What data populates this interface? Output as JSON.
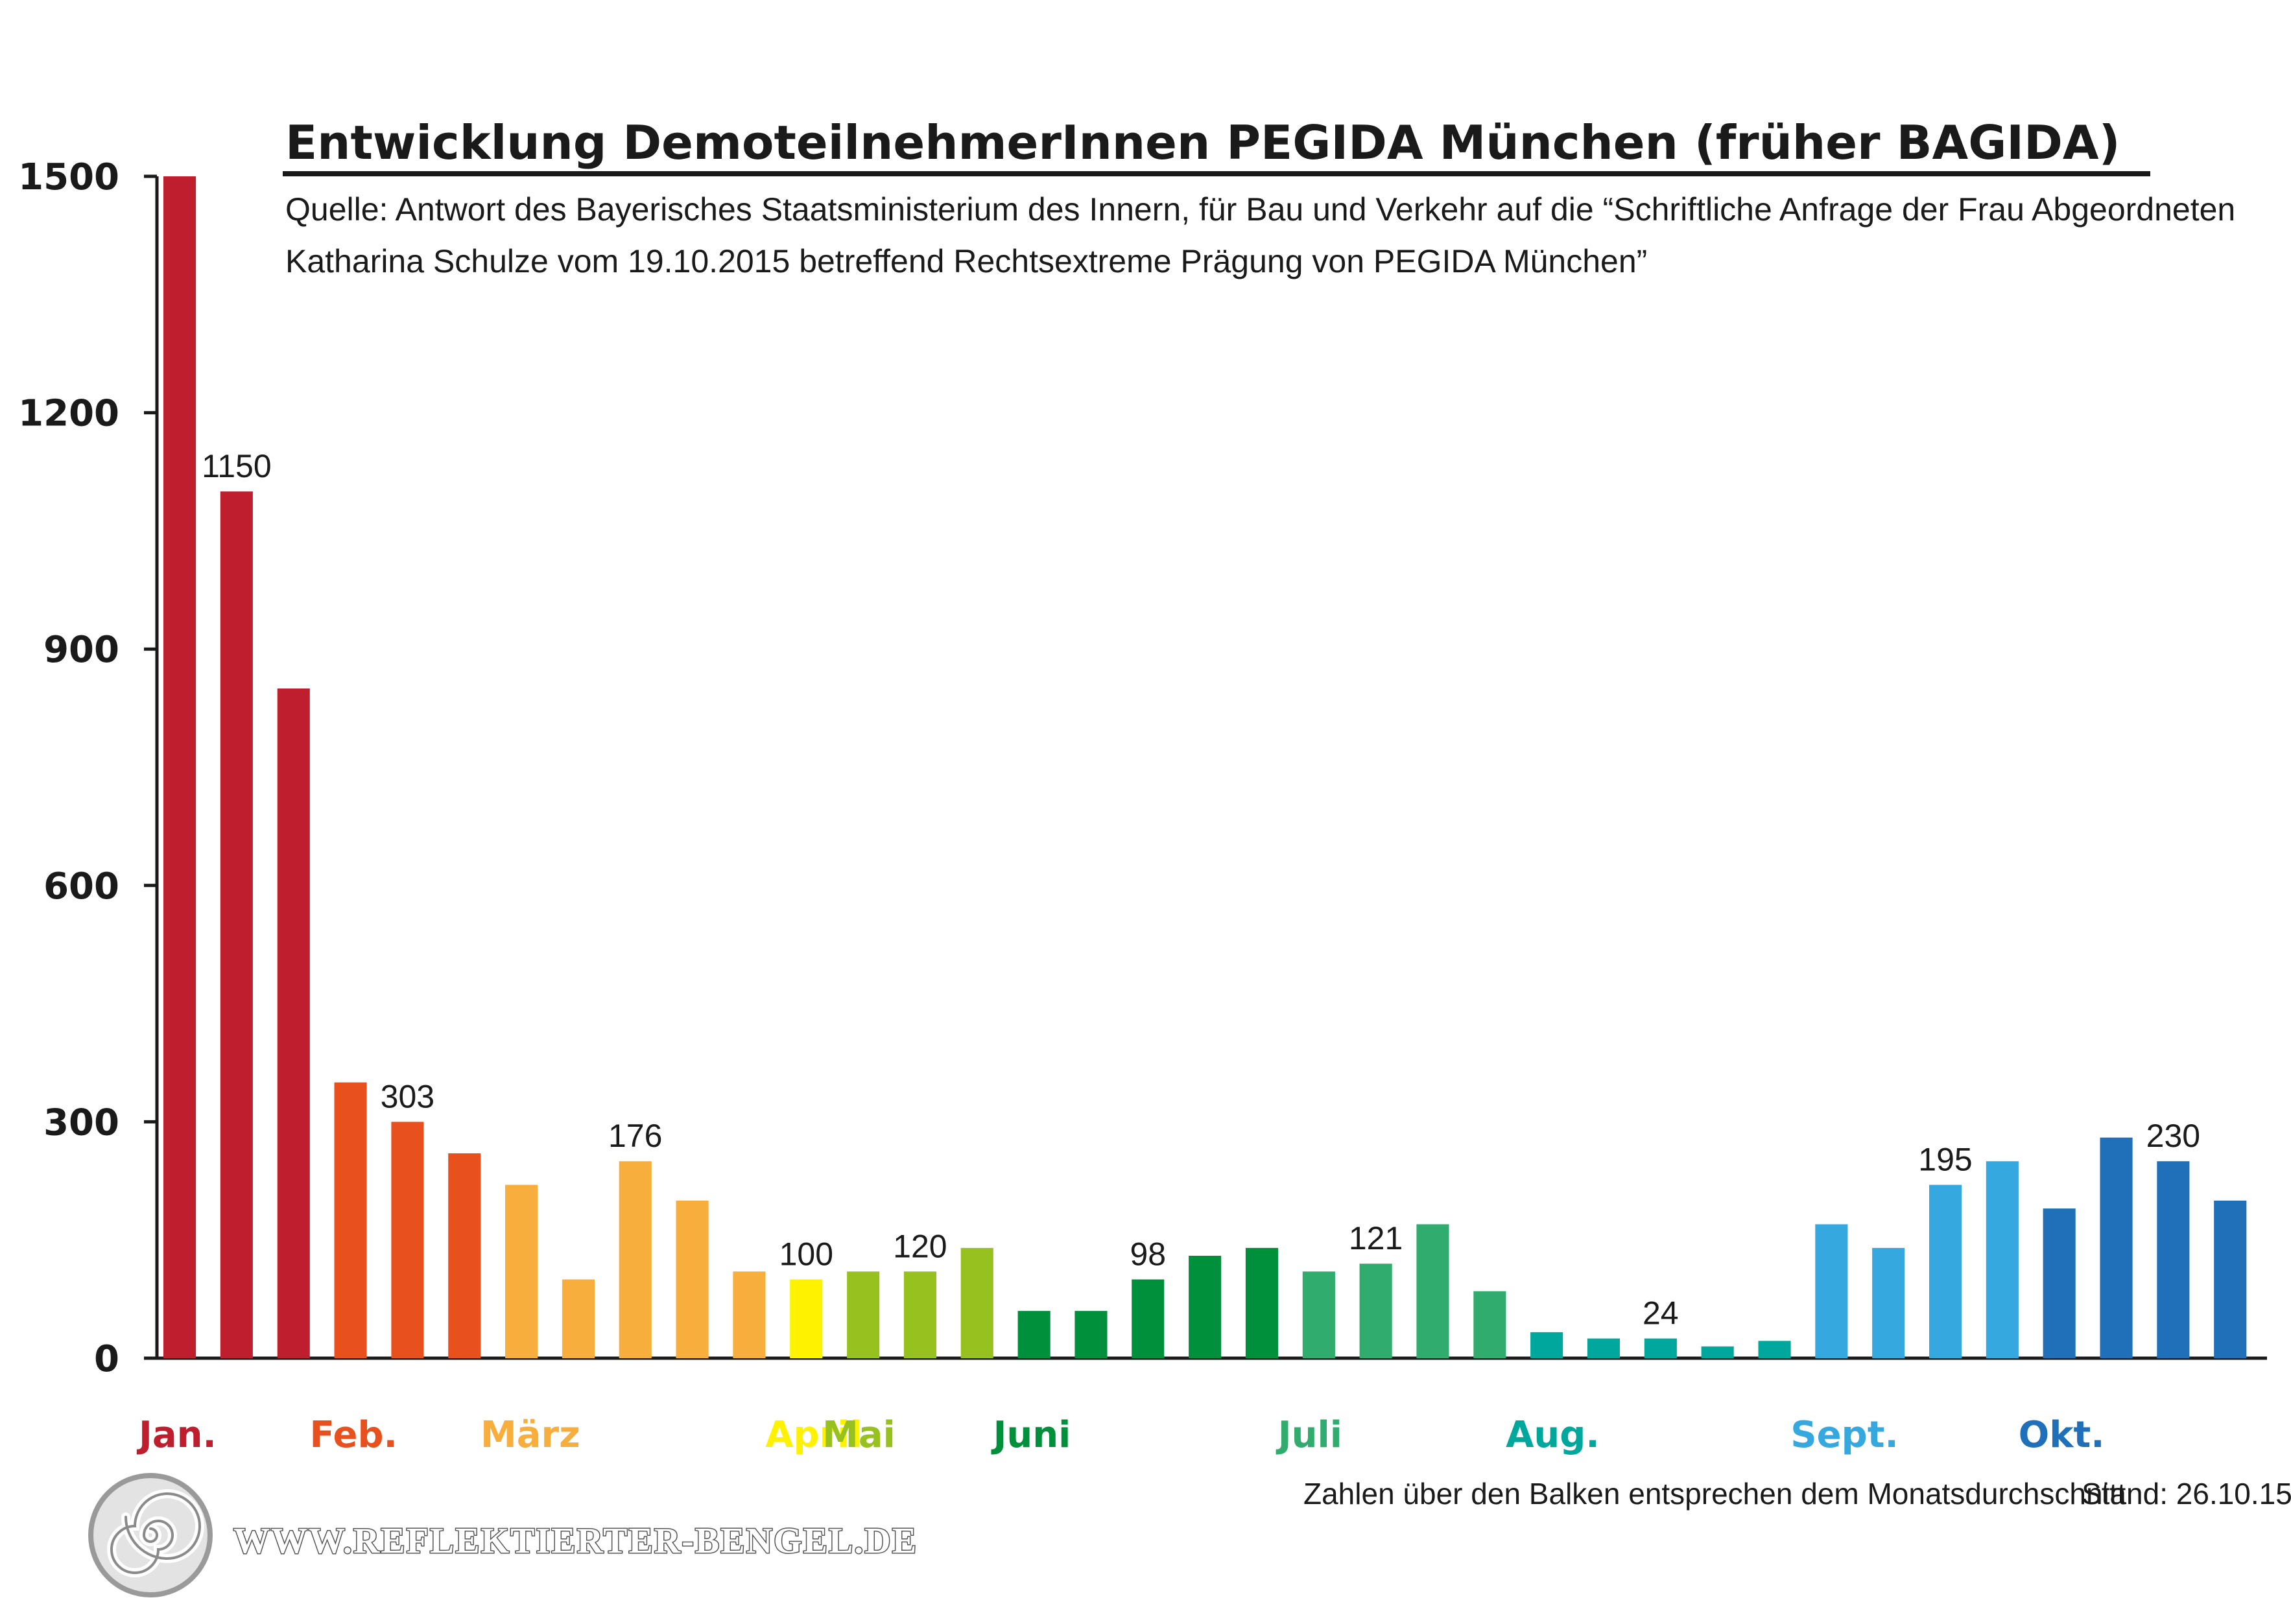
{
  "chart_data": {
    "type": "bar",
    "title": "Entwicklung DemoteilnehmerInnen PEGIDA München (früher BAGIDA)",
    "subtitle_lines": [
      "Quelle: Antwort des Bayerisches Staatsministerium des Innern, für Bau und Verkehr auf die “Schriftliche Anfrage der Frau Abgeordneten",
      "Katharina Schulze vom 19.10.2015 betreffend Rechtsextreme Prägung von PEGIDA München”"
    ],
    "ylim": [
      0,
      1500
    ],
    "yticks": [
      0,
      300,
      600,
      900,
      1200,
      1500
    ],
    "months": [
      {
        "name": "Jan.",
        "color": "#be1e2d",
        "values": [
          1500,
          1100,
          850
        ],
        "average": 1150
      },
      {
        "name": "Feb.",
        "color": "#e8501e",
        "values": [
          350,
          300,
          260
        ],
        "average": 303
      },
      {
        "name": "März",
        "color": "#f7ae3c",
        "values": [
          220,
          100,
          250,
          200,
          110
        ],
        "average": 176
      },
      {
        "name": "April",
        "color": "#fff200",
        "values": [
          100
        ],
        "average": 100
      },
      {
        "name": "Mai",
        "color": "#97c11f",
        "values": [
          110,
          110,
          140
        ],
        "average": 120
      },
      {
        "name": "Juni",
        "color": "#008f3a",
        "values": [
          60,
          60,
          100,
          130,
          140
        ],
        "average": 98
      },
      {
        "name": "Juli",
        "color": "#30ad6e",
        "values": [
          110,
          120,
          170,
          85
        ],
        "average": 121
      },
      {
        "name": "Aug.",
        "color": "#00a79d",
        "values": [
          33,
          25,
          25,
          15,
          22
        ],
        "average": 24
      },
      {
        "name": "Sept.",
        "color": "#35a8e0",
        "values": [
          170,
          140,
          220,
          250
        ],
        "average": 195
      },
      {
        "name": "Okt.",
        "color": "#1f70b8",
        "values": [
          190,
          280,
          250,
          200
        ],
        "average": 230
      }
    ],
    "average_label_bar": {
      "Jan.": 1,
      "Feb.": 1,
      "März": 2,
      "April": 0,
      "Mai": 1,
      "Juni": 2,
      "Juli": 1,
      "Aug.": 2,
      "Sept.": 2,
      "Okt.": 2
    },
    "note": "Zahlen über den Balken entsprechen dem Monatsdurchschnitt",
    "stand": "Stand: 26.10.15"
  },
  "watermark": {
    "text": "WWW.REFLEKTIERTER-BENGEL.DE",
    "icon": "spiral-icon"
  }
}
